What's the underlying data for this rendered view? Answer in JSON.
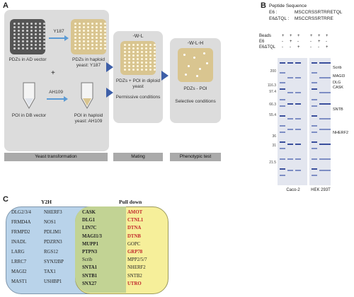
{
  "panel_a": {
    "letter": "A",
    "ad_plate_caption": "PDZs in AD vector",
    "y187_label": "Y187",
    "haploid_y187_caption": "PDZs in haploid yeast: Y187",
    "plus_sign": "+",
    "ah109_label": "AH109",
    "poi_db_caption": "POI in DB vector",
    "poi_haploid_caption": "POI in haploid yeast: AH109",
    "mating_title": "-W-L",
    "mating_caption": "PDZs + POI in diploid yeast",
    "mating_sub": "Permissive conditions",
    "selective_title": "-W-L-H",
    "selective_caption": "PDZs - POI",
    "selective_sub": "Selective conditions",
    "bar_yeast": "Yeast transformation",
    "bar_mating": "Mating",
    "bar_phenotypic": "Phenotypic test"
  },
  "panel_b": {
    "letter": "B",
    "peptide_title": "Peptide Sequence",
    "e6_label": "E6 :",
    "e6_seq": "MSCCRSSRTRRETQL",
    "e6d_label": "E6ΔTQL :",
    "e6d_seq": "MSCCRSSRTRRE",
    "row_beads": "Beads",
    "row_e6": "E6",
    "row_e6d": "E6ΔTQL",
    "beads_signs": [
      "+",
      "+",
      "+",
      "+",
      "+",
      "+"
    ],
    "e6_signs": [
      "-",
      "+",
      "-",
      "-",
      "+",
      "-"
    ],
    "e6d_signs": [
      "-",
      "-",
      "+",
      "-",
      "-",
      "+"
    ],
    "mw_markers": [
      "200",
      "116.3",
      "97.4",
      "66.3",
      "55.4",
      "36",
      "31",
      "21.5"
    ],
    "proteins": [
      "Scrib",
      "MAGI3",
      "DLG",
      "CASK",
      "SNTB",
      "NHERF2"
    ],
    "cell_left": "Caco-2",
    "cell_right": "HEK 293T"
  },
  "panel_c": {
    "letter": "C",
    "y2h_title": "Y2H",
    "pulldown_title": "Pull down",
    "y2h_col1": [
      "DLG2/3/4",
      "FRMD4A",
      "FRMPD2",
      "INADL",
      "LARG",
      "LRRC7",
      "MAGI2",
      "MAST1"
    ],
    "y2h_col2": [
      "NHERF3",
      "NOS1",
      "PDLIM1",
      "PDZRN3",
      "RGS12",
      "SYNJ2BP",
      "TAX1",
      "USHBP1"
    ],
    "overlap": [
      "CASK",
      "DLG1",
      "LIN7C",
      "MAGI1/3",
      "MUPP1",
      "PTPN3",
      "Scrib",
      "SNTA1",
      "SNTB1",
      "SNX27"
    ],
    "overlap_bold": [
      true,
      true,
      true,
      true,
      true,
      true,
      false,
      true,
      true,
      true
    ],
    "pulldown_only": [
      "AMOT",
      "CTNL1",
      "DTNA",
      "DTNB",
      "GOPC",
      "GRP78",
      "MPP2/5/7",
      "NHERF2",
      "SNTB2",
      "UTRO"
    ],
    "pulldown_red": [
      true,
      true,
      true,
      true,
      false,
      true,
      false,
      false,
      false,
      true
    ],
    "colors": {
      "y2h_fill": "#b9d3ea",
      "pull_fill": "#f6ef9a",
      "overlap_fill": "#c2d394",
      "red": "#c0262b"
    }
  }
}
